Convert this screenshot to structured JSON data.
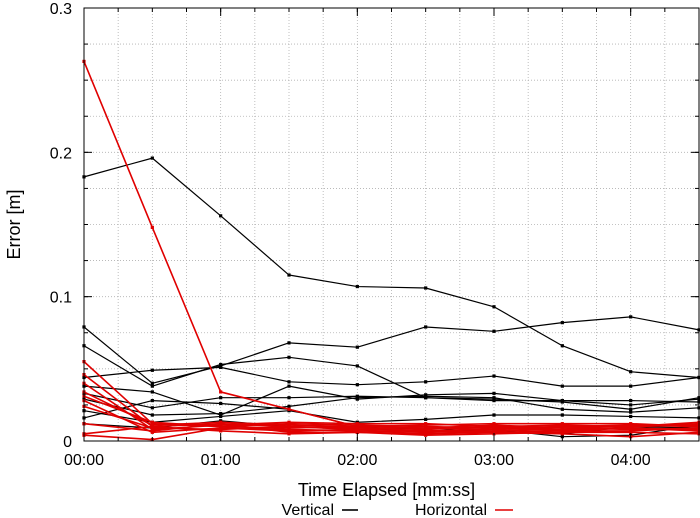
{
  "chart_data": {
    "type": "line",
    "title": "",
    "xlabel": "Time Elapsed [mm:ss]",
    "ylabel": "Error [m]",
    "x_unit": "seconds",
    "xlim": [
      0,
      270
    ],
    "ylim": [
      0,
      0.3
    ],
    "xticks": [
      {
        "value": 0,
        "label": "00:00"
      },
      {
        "value": 60,
        "label": "01:00"
      },
      {
        "value": 120,
        "label": "02:00"
      },
      {
        "value": 180,
        "label": "03:00"
      },
      {
        "value": 240,
        "label": "04:00"
      }
    ],
    "yticks": [
      {
        "value": 0,
        "label": "0"
      },
      {
        "value": 0.1,
        "label": "0.1"
      },
      {
        "value": 0.2,
        "label": "0.2"
      },
      {
        "value": 0.3,
        "label": "0.3"
      }
    ],
    "grid": true,
    "legend": {
      "placement": "bottom",
      "entries": [
        {
          "label": "Vertical",
          "color": "#000000"
        },
        {
          "label": "Horizontal",
          "color": "#e00000"
        }
      ]
    },
    "x": [
      0,
      30,
      60,
      90,
      120,
      150,
      180,
      210,
      240,
      270
    ],
    "groups": [
      {
        "label": "Vertical",
        "color": "#000000",
        "series": [
          [
            0.183,
            0.196,
            0.156,
            0.115,
            0.107,
            0.106,
            0.093,
            0.066,
            0.048,
            0.044
          ],
          [
            0.079,
            0.04,
            0.052,
            0.068,
            0.065,
            0.079,
            0.076,
            0.082,
            0.086,
            0.077
          ],
          [
            0.066,
            0.038,
            0.053,
            0.058,
            0.052,
            0.03,
            0.029,
            0.027,
            0.022,
            0.03
          ],
          [
            0.044,
            0.049,
            0.051,
            0.041,
            0.039,
            0.041,
            0.045,
            0.038,
            0.038,
            0.044
          ],
          [
            0.038,
            0.034,
            0.018,
            0.038,
            0.029,
            0.032,
            0.033,
            0.028,
            0.028,
            0.027
          ],
          [
            0.033,
            0.023,
            0.03,
            0.03,
            0.031,
            0.03,
            0.028,
            0.028,
            0.025,
            0.029
          ],
          [
            0.029,
            0.018,
            0.019,
            0.024,
            0.03,
            0.031,
            0.03,
            0.022,
            0.02,
            0.023
          ],
          [
            0.021,
            0.013,
            0.017,
            0.021,
            0.013,
            0.015,
            0.018,
            0.018,
            0.017,
            0.016
          ],
          [
            0.016,
            0.028,
            0.026,
            0.022,
            0.01,
            0.006,
            0.008,
            0.003,
            0.004,
            0.011
          ],
          [
            0.012,
            0.009,
            0.014,
            0.01,
            0.008,
            0.009,
            0.006,
            0.005,
            0.01,
            0.009
          ]
        ]
      },
      {
        "label": "Horizontal",
        "color": "#e00000",
        "series": [
          [
            0.263,
            0.148,
            0.034,
            0.022,
            0.01,
            0.009,
            0.008,
            0.01,
            0.01,
            0.012
          ],
          [
            0.055,
            0.012,
            0.01,
            0.009,
            0.01,
            0.009,
            0.011,
            0.009,
            0.008,
            0.009
          ],
          [
            0.046,
            0.01,
            0.012,
            0.01,
            0.008,
            0.007,
            0.008,
            0.009,
            0.01,
            0.011
          ],
          [
            0.04,
            0.008,
            0.011,
            0.013,
            0.012,
            0.012,
            0.01,
            0.011,
            0.01,
            0.013
          ],
          [
            0.034,
            0.011,
            0.013,
            0.011,
            0.01,
            0.011,
            0.012,
            0.012,
            0.012,
            0.01
          ],
          [
            0.031,
            0.013,
            0.01,
            0.012,
            0.011,
            0.01,
            0.009,
            0.01,
            0.011,
            0.01
          ],
          [
            0.028,
            0.006,
            0.009,
            0.008,
            0.007,
            0.006,
            0.007,
            0.008,
            0.009,
            0.008
          ],
          [
            0.024,
            0.009,
            0.008,
            0.01,
            0.009,
            0.008,
            0.01,
            0.007,
            0.007,
            0.009
          ],
          [
            0.012,
            0.007,
            0.012,
            0.006,
            0.006,
            0.005,
            0.006,
            0.007,
            0.009,
            0.007
          ],
          [
            0.004,
            0.001,
            0.009,
            0.007,
            0.008,
            0.007,
            0.006,
            0.005,
            0.003,
            0.006
          ],
          [
            0.005,
            0.01,
            0.007,
            0.005,
            0.006,
            0.004,
            0.005,
            0.006,
            0.006,
            0.005
          ]
        ]
      }
    ]
  }
}
